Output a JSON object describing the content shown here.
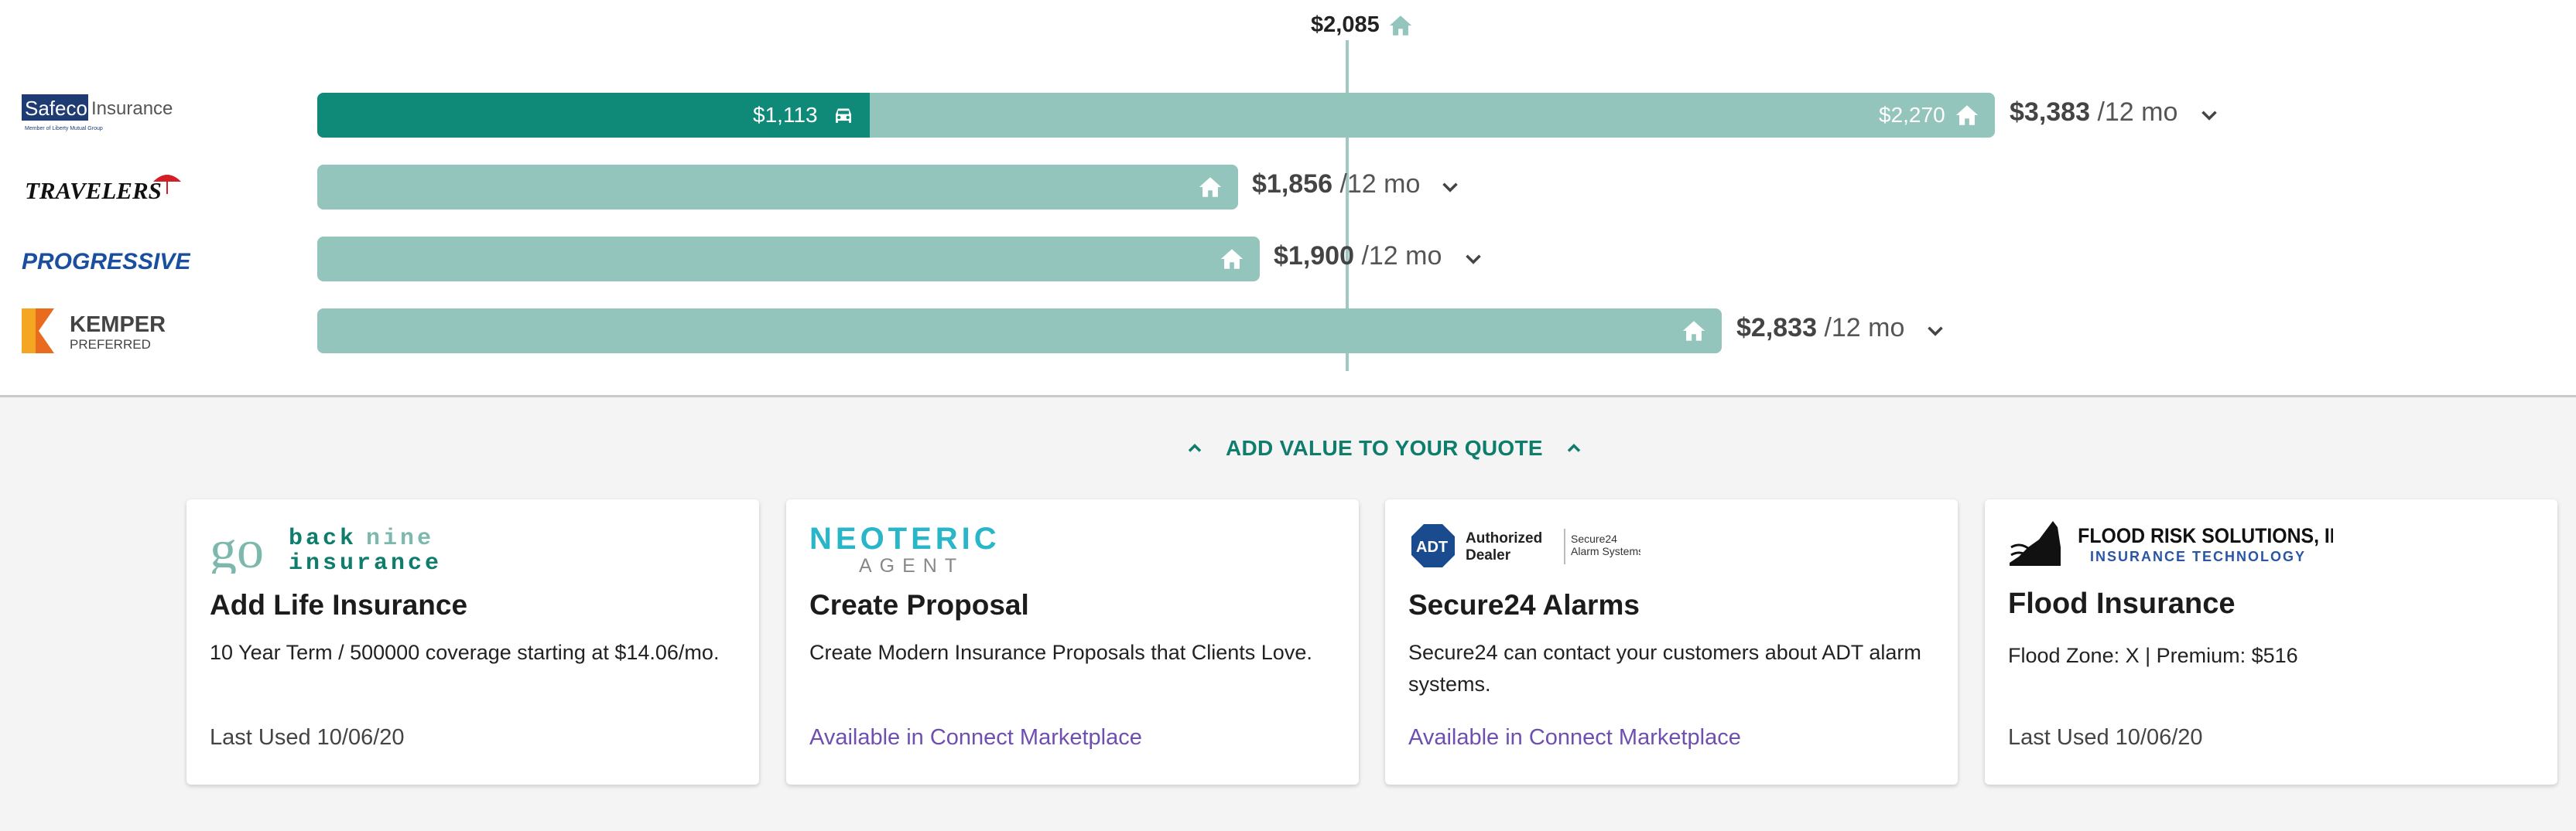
{
  "average": {
    "label": "$2,085",
    "icon": "home-icon"
  },
  "colors": {
    "bar": "#94c5bc",
    "auto_segment": "#0f8a79",
    "accent": "#0f7d6c",
    "marketplace_link": "#6e4fb0"
  },
  "carriers": [
    {
      "name": "Safeco Insurance",
      "logo_text": "Safeco",
      "logo_text2": "Insurance",
      "logo_sub": "Member of Liberty Mutual Group",
      "auto_value": "$1,113",
      "home_value": "$2,270",
      "total": "$3,383",
      "term": "/12 mo"
    },
    {
      "name": "Travelers",
      "logo_text": "TRAVELERS",
      "total": "$1,856",
      "term": "/12 mo"
    },
    {
      "name": "Progressive",
      "logo_text": "PROGRESSIVE",
      "total": "$1,900",
      "term": "/12 mo"
    },
    {
      "name": "Kemper Preferred",
      "logo_text": "KEMPER",
      "logo_sub": "PREFERRED",
      "total": "$2,833",
      "term": "/12 mo"
    }
  ],
  "add_value": {
    "label": "ADD VALUE TO YOUR QUOTE"
  },
  "cards": [
    {
      "logo_line1": "back",
      "logo_line1b": "nine",
      "logo_line2": "insurance",
      "logo_mark": "go",
      "title": "Add Life Insurance",
      "description": "10 Year Term / 500000 coverage starting at $14.06/mo.",
      "footer": "Last Used 10/06/20"
    },
    {
      "logo_line1": "NEOTERIC",
      "logo_line2": "AGENT",
      "title": "Create Proposal",
      "description": "Create Modern Insurance Proposals that Clients Love.",
      "footer": "Available in Connect Marketplace"
    },
    {
      "logo_mark": "ADT",
      "logo_line1": "Authorized",
      "logo_line2": "Dealer",
      "logo_line3": "Secure24",
      "logo_line4": "Alarm Systems",
      "title": "Secure24 Alarms",
      "description": "Secure24 can contact your customers about ADT alarm systems.",
      "footer": "Available in Connect Marketplace"
    },
    {
      "logo_line1": "FLOOD RISK SOLUTIONS, INC.",
      "logo_line2": "INSURANCE TECHNOLOGY",
      "title": "Flood Insurance",
      "description": "Flood Zone: X | Premium: $516",
      "footer": "Last Used 10/06/20"
    }
  ]
}
